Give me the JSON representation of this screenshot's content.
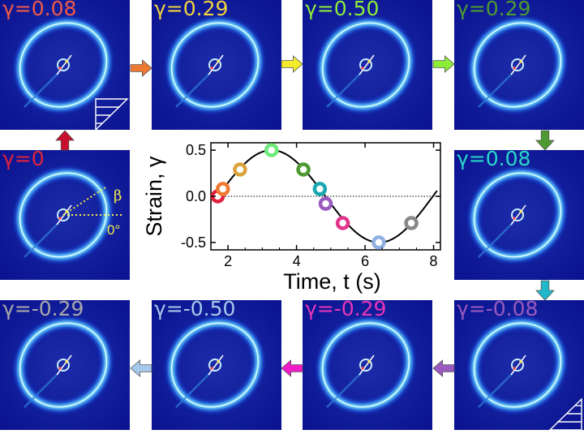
{
  "panels": [
    {
      "id": "p1",
      "label": "γ=0.08",
      "color": "#ef5a48",
      "shear": "top-right"
    },
    {
      "id": "p2",
      "label": "γ=0.29",
      "color": "#f2d23e"
    },
    {
      "id": "p3",
      "label": "γ=0.50",
      "color": "#8cec3a"
    },
    {
      "id": "p4",
      "label": "γ=0.29",
      "color": "#4e9a32"
    },
    {
      "id": "p0",
      "label": "γ=0",
      "color": "#e0223c",
      "angle_labels": {
        "beta": "β",
        "zero": "0°"
      }
    },
    {
      "id": "p5",
      "label": "γ=0.08",
      "color": "#2ad8c8"
    },
    {
      "id": "p9",
      "label": "γ=-0.29",
      "color": "#a8a8a8"
    },
    {
      "id": "p8",
      "label": "γ=-0.50",
      "color": "#a6c8ea"
    },
    {
      "id": "p7",
      "label": "γ=-0.29",
      "color": "#e835b8"
    },
    {
      "id": "p6",
      "label": "γ=-0.08",
      "color": "#9a5ac0",
      "shear": "bottom-left"
    }
  ],
  "arrows": [
    {
      "id": "a0",
      "dir": "up",
      "color": "#c8102e"
    },
    {
      "id": "a1",
      "dir": "right",
      "color": "#ef7a34"
    },
    {
      "id": "a2",
      "dir": "right",
      "color": "#f4ec2a"
    },
    {
      "id": "a3",
      "dir": "right",
      "color": "#8cec3a"
    },
    {
      "id": "a4",
      "dir": "down",
      "color": "#4e9a32"
    },
    {
      "id": "a5",
      "dir": "down",
      "color": "#20b8c8"
    },
    {
      "id": "a6",
      "dir": "left",
      "color": "#9a5ac0"
    },
    {
      "id": "a7",
      "dir": "left",
      "color": "#f01cc8"
    },
    {
      "id": "a8",
      "dir": "left",
      "color": "#a6c8ea"
    }
  ],
  "chart_data": {
    "type": "line",
    "xlabel": "Time, t (s)",
    "ylabel": "Strain, γ",
    "xlim": [
      1.5,
      8.2
    ],
    "ylim": [
      -0.58,
      0.58
    ],
    "xticks": [
      2,
      4,
      6,
      8
    ],
    "yticks": [
      0.5,
      0.0,
      -0.5
    ],
    "ytick_labels": [
      "0.5",
      "0.0",
      "-0.5"
    ],
    "zero_line": "dotted",
    "curve": {
      "amplitude": 0.5,
      "period_s": 6.28,
      "start_t": 1.7,
      "end_t": 8.1
    },
    "points": [
      {
        "t": 1.7,
        "gamma": 0.0,
        "color": "#e0223c"
      },
      {
        "t": 1.85,
        "gamma": 0.08,
        "color": "#ef7a34"
      },
      {
        "t": 2.35,
        "gamma": 0.29,
        "color": "#d9a23c"
      },
      {
        "t": 3.27,
        "gamma": 0.5,
        "color": "#6eea7a"
      },
      {
        "t": 4.2,
        "gamma": 0.29,
        "color": "#4e9a32"
      },
      {
        "t": 4.68,
        "gamma": 0.08,
        "color": "#1aa8b0"
      },
      {
        "t": 4.85,
        "gamma": -0.08,
        "color": "#9a5ac0"
      },
      {
        "t": 5.35,
        "gamma": -0.29,
        "color": "#e0358a"
      },
      {
        "t": 6.4,
        "gamma": -0.5,
        "color": "#8fb0e0"
      },
      {
        "t": 7.35,
        "gamma": -0.29,
        "color": "#888888"
      }
    ]
  }
}
